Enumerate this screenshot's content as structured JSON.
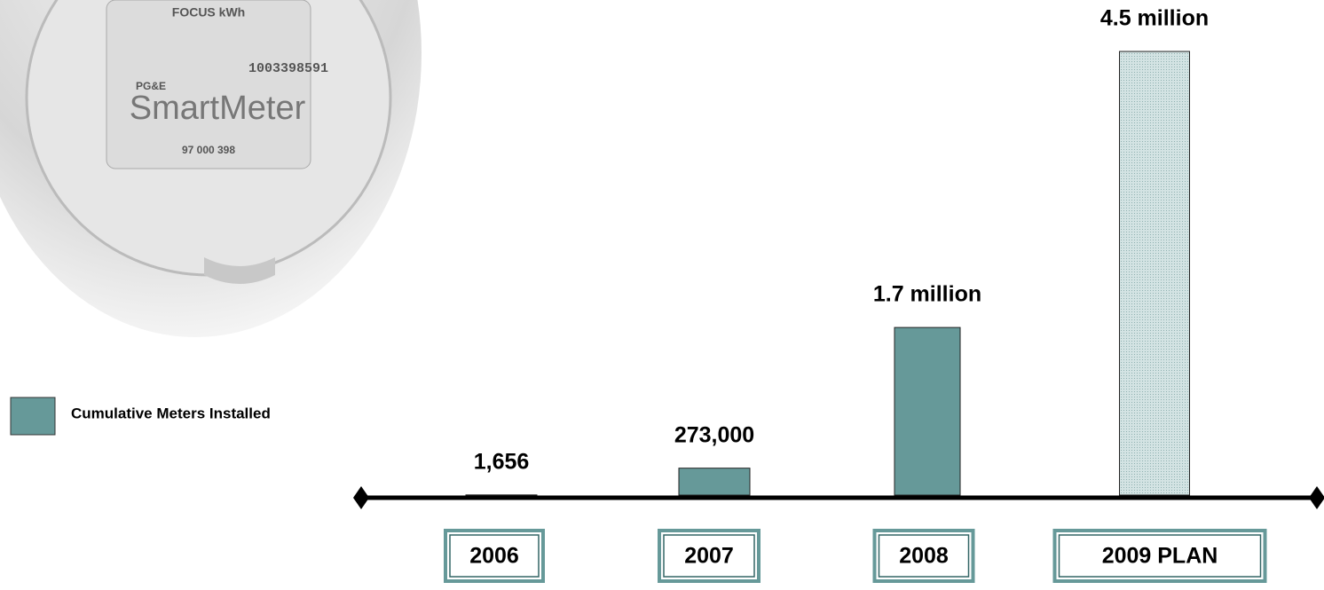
{
  "chart_data": {
    "type": "bar",
    "categories": [
      "2006",
      "2007",
      "2008",
      "2009 PLAN"
    ],
    "values": [
      1656,
      273000,
      1700000,
      4500000
    ],
    "value_labels": [
      "1,656",
      "273,000",
      "1.7 million",
      "4.5 million"
    ],
    "series_name": "Cumulative Meters Installed",
    "color": "#669999",
    "colors": [
      "#669999",
      "#669999",
      "#669999",
      "#d3e3e3"
    ],
    "ylim": [
      0,
      4500000
    ]
  },
  "image": {
    "texts": [
      "FOCUS kWh",
      "1003398591",
      "PG&E",
      "SmartMeter",
      "97 000 398"
    ]
  }
}
